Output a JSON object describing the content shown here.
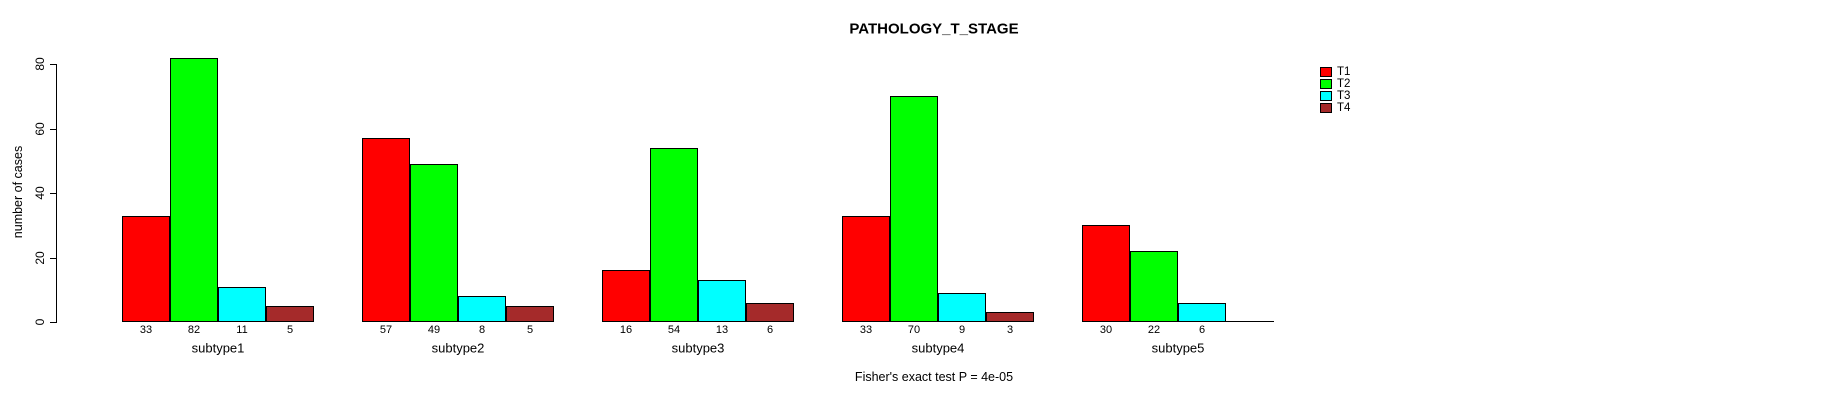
{
  "window": {
    "background_color": "#FFFFFF"
  },
  "chart_data": {
    "type": "bar",
    "title": "PATHOLOGY_T_STAGE",
    "ylabel": "number of cases",
    "xlabel": "",
    "categories": [
      "subtype1",
      "subtype2",
      "subtype3",
      "subtype4",
      "subtype5"
    ],
    "series": [
      {
        "name": "T1",
        "color": "#FF0000",
        "values": [
          33,
          57,
          16,
          33,
          30
        ]
      },
      {
        "name": "T2",
        "color": "#00FF00",
        "values": [
          82,
          49,
          54,
          70,
          22
        ]
      },
      {
        "name": "T3",
        "color": "#00FFFF",
        "values": [
          11,
          8,
          13,
          9,
          6
        ]
      },
      {
        "name": "T4",
        "color": "#A52A2A",
        "values": [
          5,
          5,
          6,
          3,
          0
        ]
      }
    ],
    "ylim": [
      0,
      80
    ],
    "yticks": [
      0,
      20,
      40,
      60,
      80
    ],
    "grid": false,
    "legend_position": "right",
    "bar_value_labels": true,
    "zero_value_bars_drawn_as_baseline_segment": true,
    "annotation": "Fisher's exact test P = 4e-05"
  }
}
